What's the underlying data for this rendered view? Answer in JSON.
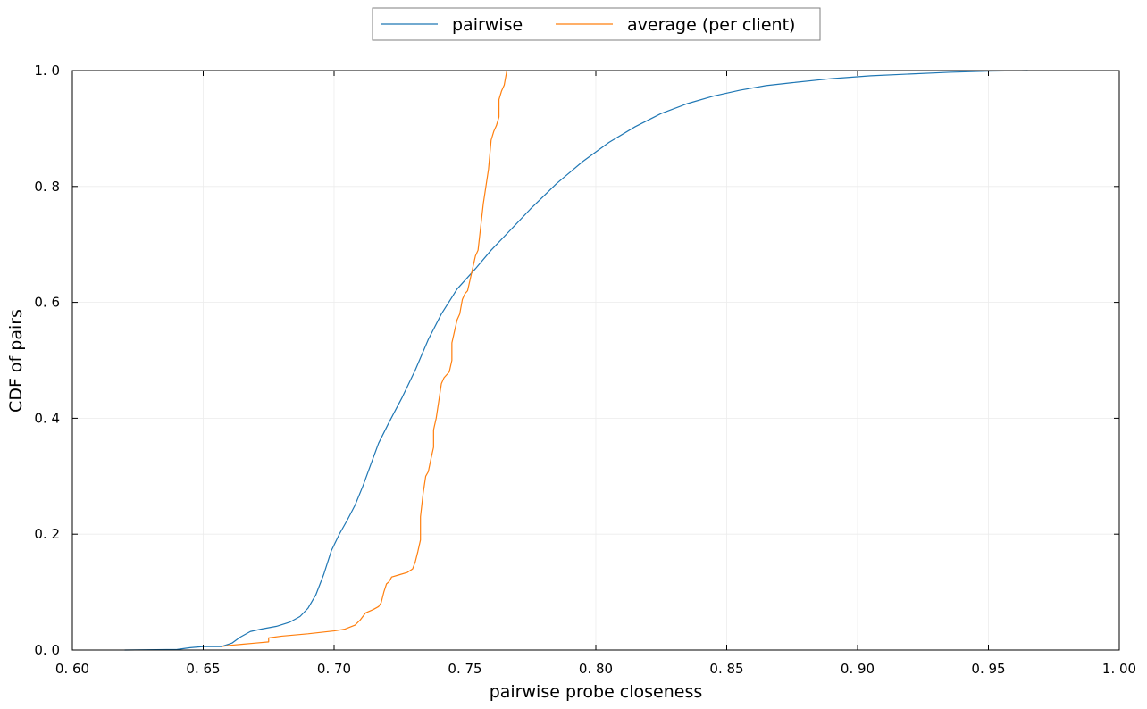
{
  "chart_data": {
    "type": "line",
    "title": "",
    "xlabel": "pairwise probe closeness",
    "ylabel": "CDF of pairs",
    "xlim": [
      0.6,
      1.0
    ],
    "ylim": [
      0.0,
      1.0
    ],
    "grid": true,
    "legend_position": "top-center, outside plot",
    "x_ticks": [
      0.6,
      0.65,
      0.7,
      0.75,
      0.8,
      0.85,
      0.9,
      0.95,
      1.0
    ],
    "x_tick_labels": [
      "0. 60",
      "0. 65",
      "0. 70",
      "0. 75",
      "0. 80",
      "0. 85",
      "0. 90",
      "0. 95",
      "1. 00"
    ],
    "y_ticks": [
      0.0,
      0.2,
      0.4,
      0.6,
      0.8,
      1.0
    ],
    "y_tick_labels": [
      "0. 0",
      "0. 2",
      "0. 4",
      "0. 6",
      "0. 8",
      "1. 0"
    ],
    "series": [
      {
        "name": "pairwise",
        "color": "#1f77b4",
        "points": [
          [
            0.62,
            0.0
          ],
          [
            0.64,
            0.001
          ],
          [
            0.645,
            0.004
          ],
          [
            0.65,
            0.006
          ],
          [
            0.657,
            0.006
          ],
          [
            0.661,
            0.012
          ],
          [
            0.664,
            0.022
          ],
          [
            0.668,
            0.032
          ],
          [
            0.672,
            0.036
          ],
          [
            0.678,
            0.041
          ],
          [
            0.683,
            0.048
          ],
          [
            0.687,
            0.058
          ],
          [
            0.69,
            0.072
          ],
          [
            0.693,
            0.095
          ],
          [
            0.696,
            0.13
          ],
          [
            0.699,
            0.172
          ],
          [
            0.702,
            0.2
          ],
          [
            0.705,
            0.224
          ],
          [
            0.708,
            0.25
          ],
          [
            0.711,
            0.283
          ],
          [
            0.714,
            0.32
          ],
          [
            0.717,
            0.357
          ],
          [
            0.721,
            0.393
          ],
          [
            0.726,
            0.436
          ],
          [
            0.731,
            0.483
          ],
          [
            0.736,
            0.536
          ],
          [
            0.741,
            0.58
          ],
          [
            0.747,
            0.623
          ],
          [
            0.754,
            0.658
          ],
          [
            0.76,
            0.69
          ],
          [
            0.767,
            0.723
          ],
          [
            0.775,
            0.761
          ],
          [
            0.785,
            0.805
          ],
          [
            0.795,
            0.843
          ],
          [
            0.805,
            0.876
          ],
          [
            0.815,
            0.903
          ],
          [
            0.825,
            0.926
          ],
          [
            0.835,
            0.943
          ],
          [
            0.845,
            0.956
          ],
          [
            0.855,
            0.966
          ],
          [
            0.865,
            0.974
          ],
          [
            0.875,
            0.979
          ],
          [
            0.89,
            0.986
          ],
          [
            0.905,
            0.991
          ],
          [
            0.92,
            0.994
          ],
          [
            0.935,
            0.997
          ],
          [
            0.95,
            0.999
          ],
          [
            0.965,
            1.0
          ]
        ]
      },
      {
        "name": "average (per client)",
        "color": "#ff7f0e",
        "points": [
          [
            0.657,
            0.006
          ],
          [
            0.66,
            0.008
          ],
          [
            0.665,
            0.01
          ],
          [
            0.67,
            0.012
          ],
          [
            0.675,
            0.014
          ],
          [
            0.675,
            0.021
          ],
          [
            0.68,
            0.024
          ],
          [
            0.69,
            0.028
          ],
          [
            0.7,
            0.033
          ],
          [
            0.704,
            0.036
          ],
          [
            0.708,
            0.043
          ],
          [
            0.71,
            0.052
          ],
          [
            0.712,
            0.064
          ],
          [
            0.715,
            0.07
          ],
          [
            0.717,
            0.075
          ],
          [
            0.718,
            0.082
          ],
          [
            0.719,
            0.1
          ],
          [
            0.72,
            0.114
          ],
          [
            0.721,
            0.118
          ],
          [
            0.722,
            0.126
          ],
          [
            0.725,
            0.13
          ],
          [
            0.728,
            0.134
          ],
          [
            0.73,
            0.14
          ],
          [
            0.731,
            0.152
          ],
          [
            0.732,
            0.17
          ],
          [
            0.733,
            0.19
          ],
          [
            0.733,
            0.23
          ],
          [
            0.734,
            0.27
          ],
          [
            0.735,
            0.3
          ],
          [
            0.736,
            0.308
          ],
          [
            0.737,
            0.33
          ],
          [
            0.738,
            0.35
          ],
          [
            0.738,
            0.38
          ],
          [
            0.739,
            0.4
          ],
          [
            0.74,
            0.43
          ],
          [
            0.741,
            0.46
          ],
          [
            0.742,
            0.47
          ],
          [
            0.744,
            0.48
          ],
          [
            0.745,
            0.5
          ],
          [
            0.745,
            0.53
          ],
          [
            0.746,
            0.55
          ],
          [
            0.747,
            0.57
          ],
          [
            0.748,
            0.58
          ],
          [
            0.749,
            0.605
          ],
          [
            0.75,
            0.615
          ],
          [
            0.751,
            0.62
          ],
          [
            0.752,
            0.64
          ],
          [
            0.753,
            0.66
          ],
          [
            0.754,
            0.68
          ],
          [
            0.755,
            0.69
          ],
          [
            0.756,
            0.73
          ],
          [
            0.757,
            0.77
          ],
          [
            0.758,
            0.8
          ],
          [
            0.759,
            0.83
          ],
          [
            0.76,
            0.88
          ],
          [
            0.761,
            0.895
          ],
          [
            0.762,
            0.905
          ],
          [
            0.763,
            0.92
          ],
          [
            0.763,
            0.95
          ],
          [
            0.764,
            0.965
          ],
          [
            0.765,
            0.975
          ],
          [
            0.766,
            1.0
          ]
        ]
      }
    ]
  }
}
